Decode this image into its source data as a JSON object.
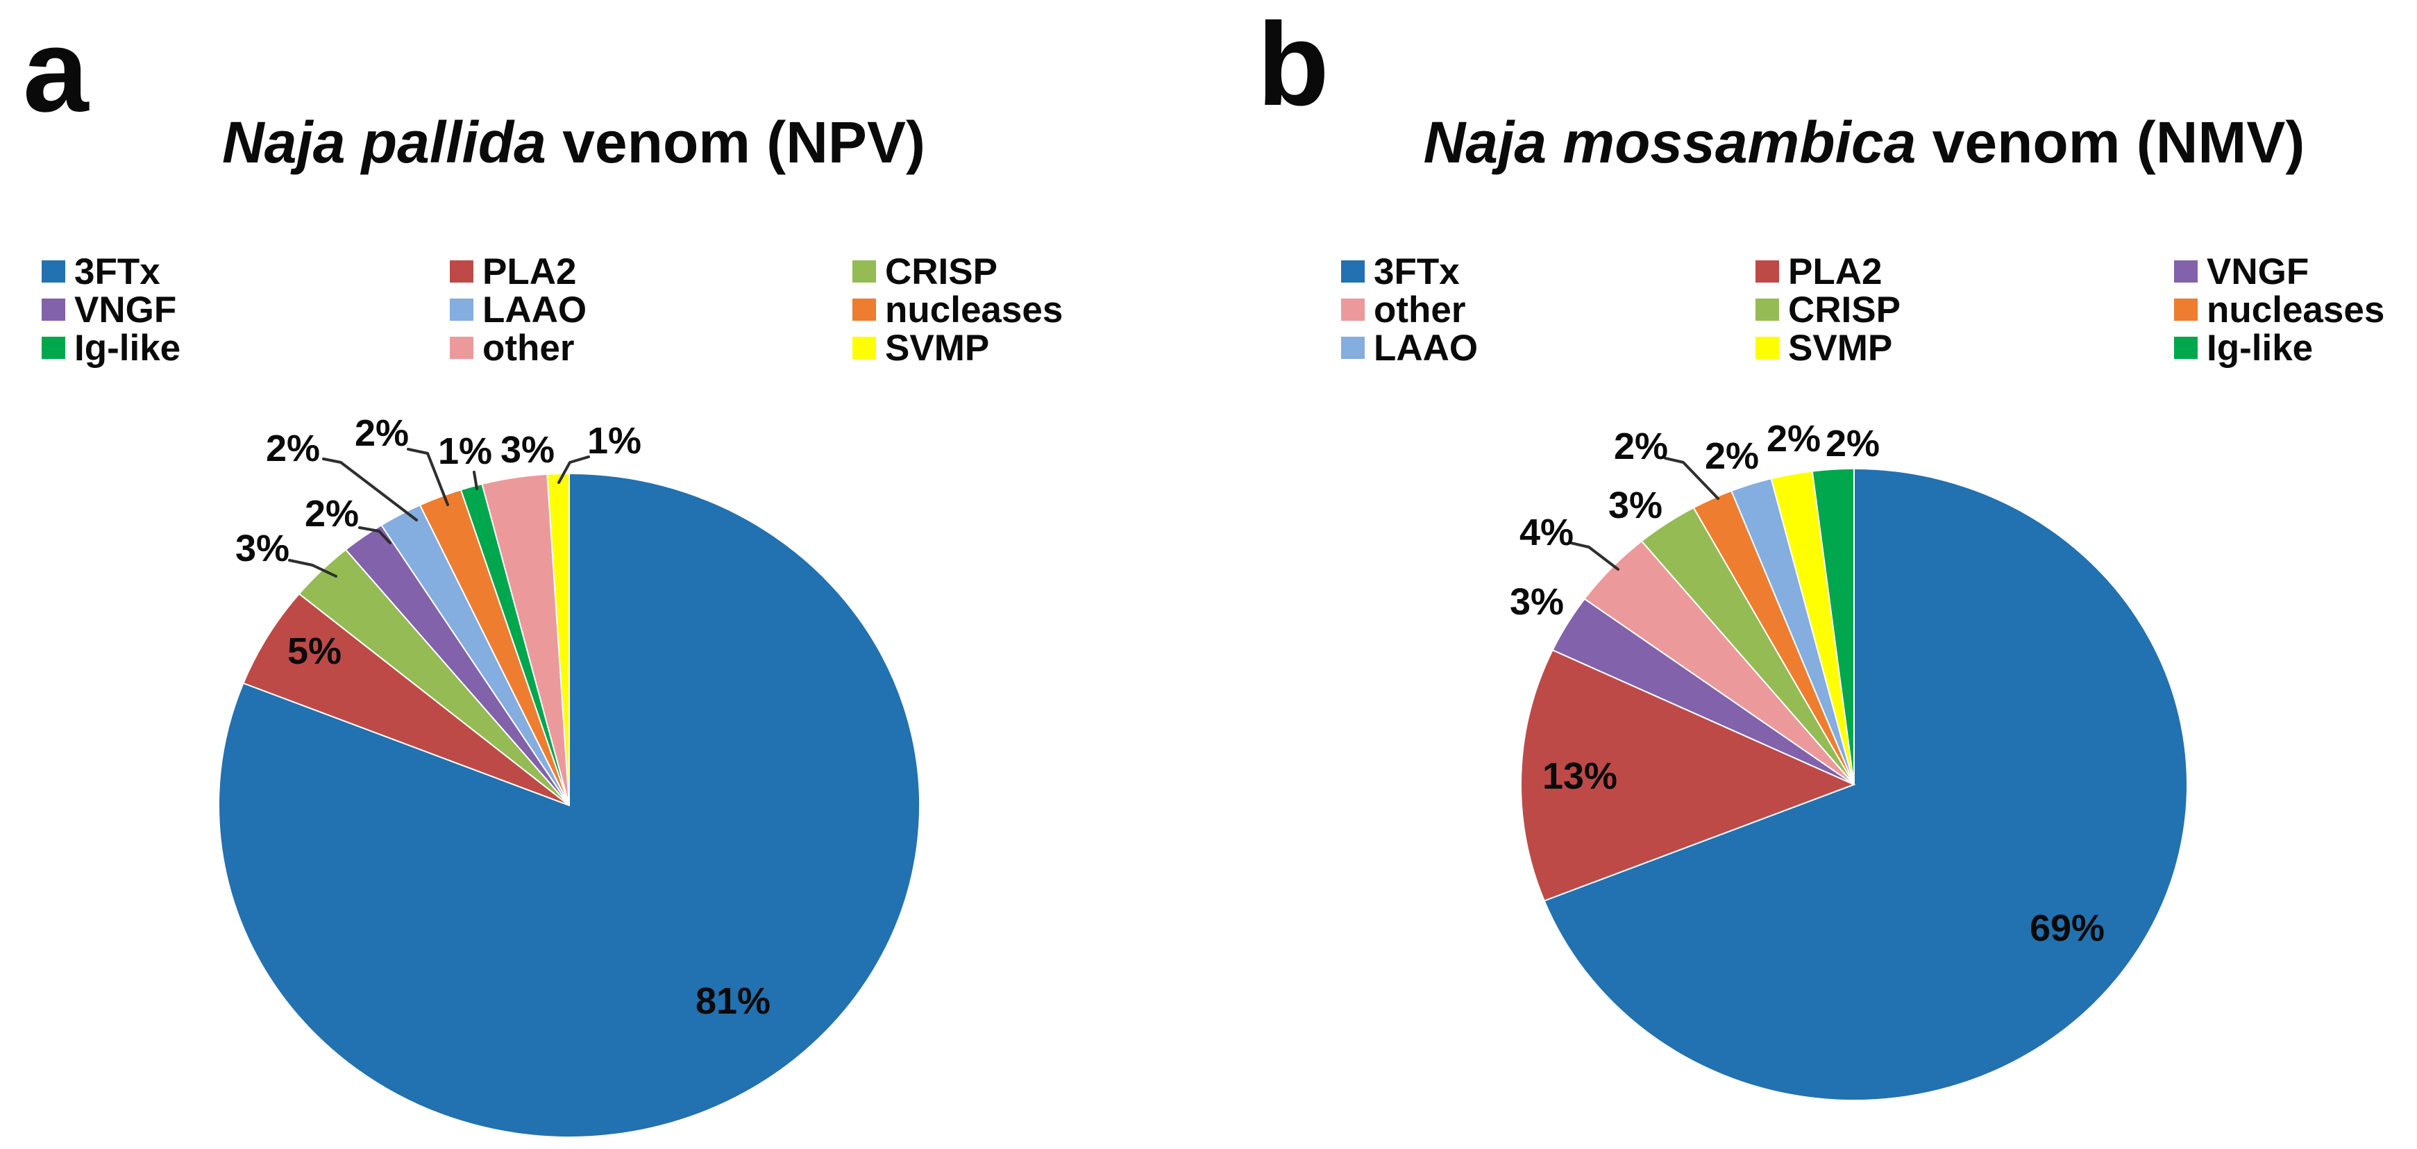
{
  "chart_data": [
    {
      "type": "pie",
      "panel_label": "a",
      "title": "Naja pallida venom (NPV)",
      "title_italic_part": "Naja pallida",
      "title_regular_part": " venom (NPV)",
      "slice_order": "clockwise-from-12-oclock",
      "slices": [
        {
          "label": "3FTx",
          "value_pct": 81,
          "percent_label": "81%",
          "color": "#2271B0"
        },
        {
          "label": "PLA2",
          "value_pct": 5,
          "percent_label": "5%",
          "color": "#BE4A47"
        },
        {
          "label": "CRISP",
          "value_pct": 3,
          "percent_label": "3%",
          "color": "#94BB54"
        },
        {
          "label": "VNGF",
          "value_pct": 2,
          "percent_label": "2%",
          "color": "#8262AA"
        },
        {
          "label": "LAAO",
          "value_pct": 2,
          "percent_label": "2%",
          "color": "#84ADE0"
        },
        {
          "label": "nucleases",
          "value_pct": 2,
          "percent_label": "2%",
          "color": "#EE7D2F"
        },
        {
          "label": "Ig-like",
          "value_pct": 1,
          "percent_label": "1%",
          "color": "#00A74D"
        },
        {
          "label": "other",
          "value_pct": 3,
          "percent_label": "3%",
          "color": "#EC999B"
        },
        {
          "label": "SVMP",
          "value_pct": 1,
          "percent_label": "1%",
          "color": "#FFFF00"
        }
      ],
      "legend_rows": [
        [
          "3FTx",
          "PLA2",
          "CRISP"
        ],
        [
          "VNGF",
          "LAAO",
          "nucleases"
        ],
        [
          "Ig-like",
          "other",
          "SVMP"
        ]
      ]
    },
    {
      "type": "pie",
      "panel_label": "b",
      "title": "Naja mossambica venom (NMV)",
      "title_italic_part": "Naja mossambica",
      "title_regular_part": " venom (NMV)",
      "slice_order": "clockwise-from-12-oclock",
      "slices": [
        {
          "label": "3FTx",
          "value_pct": 69,
          "percent_label": "69%",
          "color": "#2271B0"
        },
        {
          "label": "PLA2",
          "value_pct": 13,
          "percent_label": "13%",
          "color": "#BE4A47"
        },
        {
          "label": "VNGF",
          "value_pct": 3,
          "percent_label": "3%",
          "color": "#8262AA"
        },
        {
          "label": "other",
          "value_pct": 4,
          "percent_label": "4%",
          "color": "#EC999B"
        },
        {
          "label": "CRISP",
          "value_pct": 3,
          "percent_label": "3%",
          "color": "#94BB54"
        },
        {
          "label": "nucleases",
          "value_pct": 2,
          "percent_label": "2%",
          "color": "#EE7D2F"
        },
        {
          "label": "LAAO",
          "value_pct": 2,
          "percent_label": "2%",
          "color": "#84ADE0"
        },
        {
          "label": "SVMP",
          "value_pct": 2,
          "percent_label": "2%",
          "color": "#FFFF00"
        },
        {
          "label": "Ig-like",
          "value_pct": 2,
          "percent_label": "2%",
          "color": "#00A74D"
        }
      ],
      "legend_rows": [
        [
          "3FTx",
          "PLA2",
          "VNGF"
        ],
        [
          "other",
          "CRISP",
          "nucleases"
        ],
        [
          "LAAO",
          "SVMP",
          "Ig-like"
        ]
      ]
    }
  ]
}
